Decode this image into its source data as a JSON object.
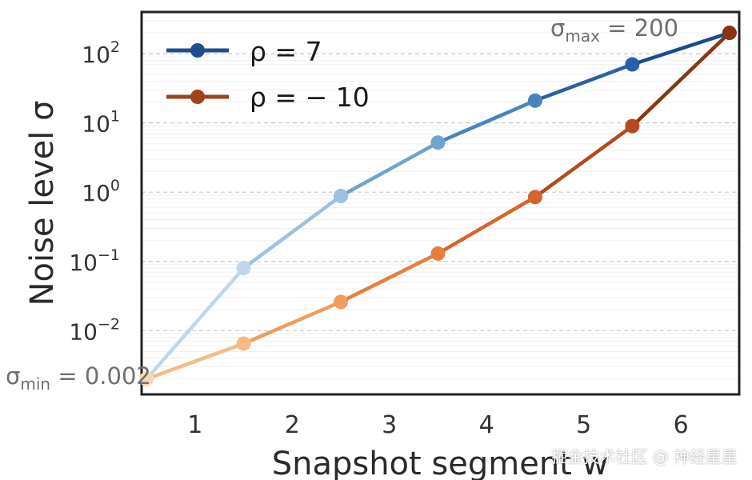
{
  "chart_data": {
    "type": "line",
    "title": "",
    "xlabel": "Snapshot segment w",
    "ylabel": "Noise level σ",
    "yscale": "log",
    "ylim": [
      0.0012,
      400
    ],
    "xlim": [
      0.45,
      6.6
    ],
    "grid": true,
    "legend_position": "top-left",
    "x_ticks": [
      "1",
      "2",
      "3",
      "4",
      "5",
      "6"
    ],
    "y_ticks": [
      {
        "base": "10",
        "exp": "2"
      },
      {
        "base": "10",
        "exp": "1"
      },
      {
        "base": "10",
        "exp": "0"
      },
      {
        "base": "10",
        "exp": "−1"
      },
      {
        "base": "10",
        "exp": "−2"
      }
    ],
    "series": [
      {
        "name": "ρ = 7",
        "legend_label": "ρ = 7",
        "x": [
          0.5,
          1.5,
          2.5,
          3.5,
          4.5,
          5.5,
          6.5
        ],
        "values": [
          0.002,
          0.08,
          0.88,
          5.2,
          21,
          70,
          200
        ],
        "colors": [
          "#dbe8f4",
          "#c0d6ea",
          "#9dc1de",
          "#6ea4cd",
          "#4684bd",
          "#295fa6",
          "#1b4a8f"
        ],
        "legend_color": "#1f4e8f"
      },
      {
        "name": "ρ = −10",
        "legend_label": "ρ = − 10",
        "x": [
          0.5,
          1.5,
          2.5,
          3.5,
          4.5,
          5.5,
          6.5
        ],
        "values": [
          0.002,
          0.0065,
          0.026,
          0.13,
          0.85,
          9,
          200
        ],
        "colors": [
          "#f9d7b2",
          "#f5ba86",
          "#f09c5c",
          "#e97d3c",
          "#d8632c",
          "#b4481f",
          "#8a3316"
        ],
        "legend_color": "#a0421c"
      }
    ],
    "annotations": {
      "sigma_max": {
        "symbol": "σ",
        "sub": "max",
        "text": " = 200"
      },
      "sigma_min": {
        "symbol": "σ",
        "sub": "min",
        "text": " = 0.002"
      }
    }
  },
  "watermark": "掘金技术社区 @ 神经星星"
}
